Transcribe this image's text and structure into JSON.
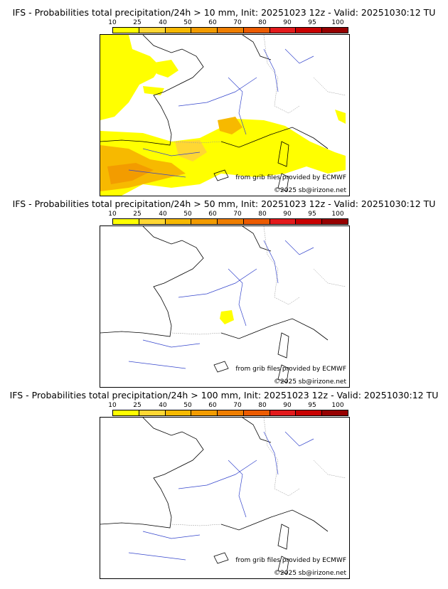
{
  "colorbar": {
    "labels": [
      "10",
      "25",
      "40",
      "50",
      "60",
      "70",
      "80",
      "90",
      "95",
      "100"
    ],
    "colors": [
      "#ffff00",
      "#ffd733",
      "#f7b900",
      "#f39c00",
      "#ef7e00",
      "#ec5b00",
      "#e31a1c",
      "#c80000",
      "#960000",
      "#5a0000"
    ]
  },
  "credits": {
    "source": "from grib files provided by ECMWF",
    "copyright": "©2025 sb@irizone.net"
  },
  "panels": [
    {
      "title": "IFS - Probabilities total precipitation/24h > 10 mm, Init: 20251023 12z - Valid: 20251030:12 TU"
    },
    {
      "title": "IFS - Probabilities total precipitation/24h > 50 mm, Init: 20251023 12z - Valid: 20251030:12 TU"
    },
    {
      "title": "IFS - Probabilities total precipitation/24h > 100 mm, Init: 20251023 12z - Valid: 20251030:12 TU"
    }
  ]
}
